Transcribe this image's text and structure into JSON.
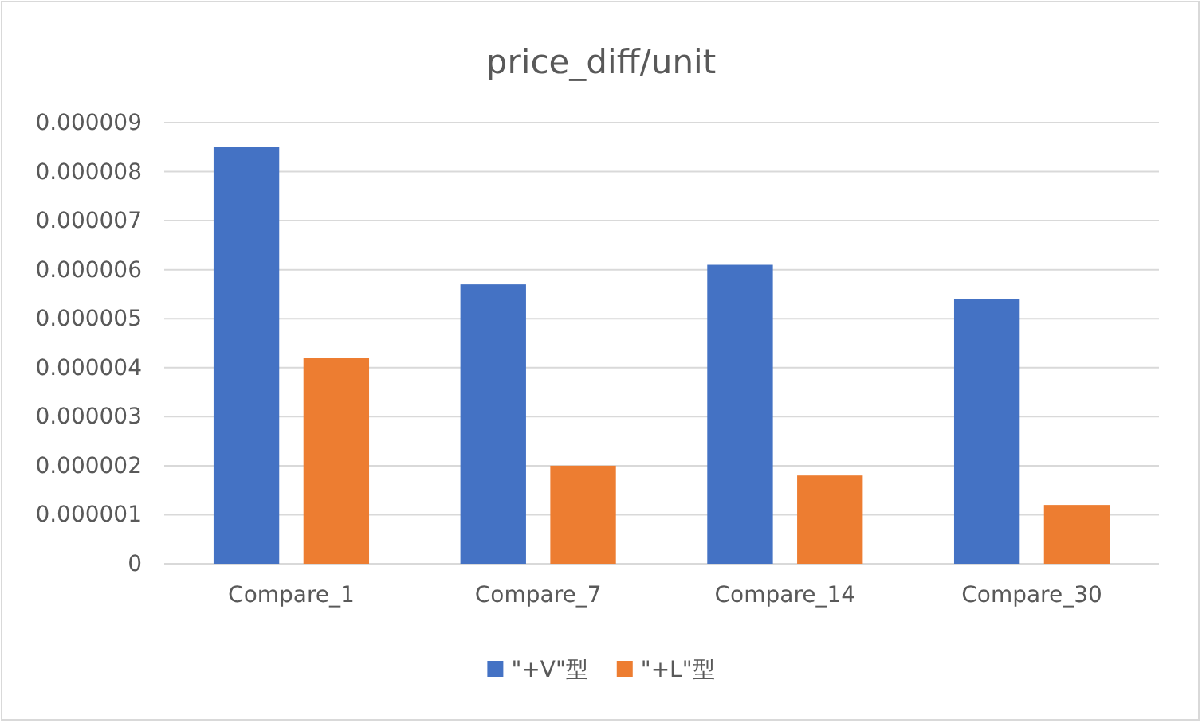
{
  "chart_data": {
    "type": "bar",
    "title": "price_diff/unit",
    "categories": [
      "Compare_1",
      "Compare_7",
      "Compare_14",
      "Compare_30"
    ],
    "series": [
      {
        "name": "\"+V\"型",
        "color": "#4472c4",
        "values": [
          8.5e-06,
          5.7e-06,
          6.1e-06,
          5.4e-06
        ]
      },
      {
        "name": "\"+L\"型",
        "color": "#ed7d31",
        "values": [
          4.2e-06,
          2e-06,
          1.8e-06,
          1.2e-06
        ]
      }
    ],
    "ylim": [
      0,
      9e-06
    ],
    "yticks": [
      0,
      {
        "value": 1e-06,
        "label": "0.000001"
      },
      {
        "value": 2e-06,
        "label": "0.000002"
      },
      {
        "value": 3e-06,
        "label": "0.000003"
      },
      {
        "value": 4e-06,
        "label": "0.000004"
      },
      {
        "value": 5e-06,
        "label": "0.000005"
      },
      {
        "value": 6e-06,
        "label": "0.000006"
      },
      {
        "value": 7e-06,
        "label": "0.000007"
      },
      {
        "value": 8e-06,
        "label": "0.000008"
      },
      {
        "value": 9e-06,
        "label": "0.000009"
      }
    ],
    "grid": "y",
    "legend": "bottom"
  }
}
